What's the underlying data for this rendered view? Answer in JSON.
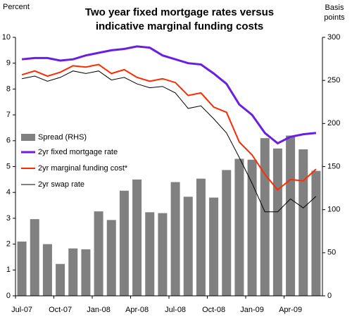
{
  "chart_data": {
    "type": "combo",
    "title": "Two year fixed mortgage rates versus indicative marginal funding costs",
    "y_label": "Percent",
    "y2_label": "Basis points",
    "categories": [
      "Jul-07",
      null,
      null,
      "Oct-07",
      null,
      null,
      "Jan-08",
      null,
      null,
      "Apr-08",
      null,
      null,
      "Jul-08",
      null,
      null,
      "Oct-08",
      null,
      null,
      "Jan-09",
      null,
      null,
      "Apr-09",
      null,
      null
    ],
    "ylim": [
      0,
      10
    ],
    "yticks": [
      0,
      1,
      2,
      3,
      4,
      5,
      6,
      7,
      8,
      9,
      10
    ],
    "y2lim": [
      0,
      300
    ],
    "y2ticks": [
      0,
      50,
      100,
      150,
      200,
      250,
      300
    ],
    "grid": false,
    "series": [
      {
        "name": "Spread (RHS)",
        "type": "bar",
        "axis": "y2",
        "color": "#808080",
        "values": [
          63,
          89,
          60,
          37,
          55,
          54,
          98,
          88,
          122,
          135,
          97,
          96,
          132,
          115,
          136,
          114,
          146,
          159,
          158,
          183,
          171,
          186,
          170,
          145
        ]
      },
      {
        "name": "2yr fixed mortgage rate",
        "type": "line",
        "axis": "y",
        "color": "#6a1fe0",
        "values": [
          9.15,
          9.2,
          9.2,
          9.1,
          9.15,
          9.3,
          9.4,
          9.5,
          9.55,
          9.65,
          9.6,
          9.3,
          9.15,
          9.0,
          8.95,
          8.6,
          8.2,
          7.4,
          7.0,
          6.3,
          5.9,
          6.15,
          6.25,
          6.3
        ]
      },
      {
        "name": "2yr marginal funding cost*",
        "type": "line",
        "axis": "y",
        "color": "#ff2a00",
        "values": [
          8.55,
          8.7,
          8.5,
          8.65,
          8.9,
          8.85,
          8.95,
          8.6,
          8.75,
          8.45,
          8.3,
          8.4,
          8.25,
          7.75,
          7.85,
          7.3,
          7.1,
          5.95,
          5.45,
          4.7,
          4.1,
          4.5,
          4.45,
          4.9
        ]
      },
      {
        "name": "2yr swap rate",
        "type": "line",
        "axis": "y",
        "color": "#000000",
        "values": [
          8.4,
          8.5,
          8.3,
          8.45,
          8.7,
          8.6,
          8.7,
          8.35,
          8.45,
          8.2,
          8.05,
          8.1,
          7.85,
          7.25,
          7.35,
          6.85,
          6.3,
          5.35,
          4.35,
          3.25,
          3.25,
          3.75,
          3.4,
          3.85
        ]
      }
    ]
  }
}
